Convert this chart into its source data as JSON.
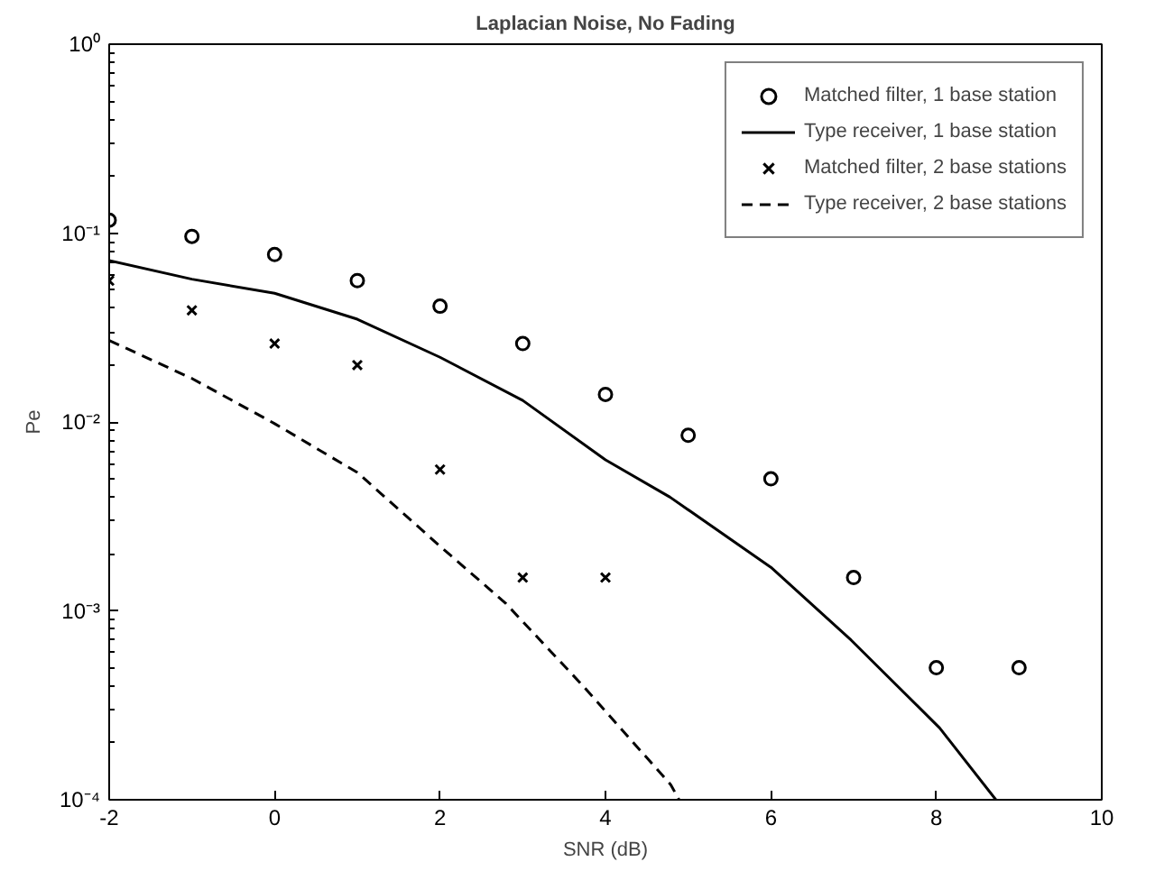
{
  "chart_data": {
    "type": "line",
    "title": "Laplacian Noise, No Fading",
    "xlabel": "SNR (dB)",
    "ylabel": "Pe",
    "log": "y",
    "grid": false,
    "legend": "top right",
    "xlim": [
      -2,
      10
    ],
    "xticks": [
      -2,
      0,
      2,
      4,
      6,
      8,
      10
    ],
    "ylim": [
      0.0001,
      1
    ],
    "yticks": [
      {
        "value": 0.0001,
        "label": "10⁻⁴"
      },
      {
        "value": 0.001,
        "label": "10⁻³"
      },
      {
        "value": 0.01,
        "label": "10⁻²"
      },
      {
        "value": 0.1,
        "label": "10⁻¹"
      },
      {
        "value": 1,
        "label": "10⁰"
      }
    ],
    "series": [
      {
        "name": "Matched filter, 1 base station",
        "type": "scatter",
        "marker": "circle",
        "color": "#000000",
        "x": [
          -2,
          -1,
          0,
          1,
          2,
          3,
          4,
          5,
          6,
          7,
          8,
          9
        ],
        "values": [
          0.117,
          0.096,
          0.077,
          0.056,
          0.041,
          0.026,
          0.014,
          0.0085,
          0.005,
          0.0015,
          0.0005,
          0.0005
        ]
      },
      {
        "name": "Type receiver, 1 base station",
        "line_style": "solid",
        "color": "#000000",
        "x": [
          -2,
          -1,
          0,
          1,
          2,
          3,
          4,
          4.78,
          6,
          6.97,
          8.04,
          8.72
        ],
        "values": [
          0.0715,
          0.057,
          0.048,
          0.035,
          0.022,
          0.013,
          0.0063,
          0.004,
          0.0017,
          0.0007,
          0.00024,
          0.0001
        ]
      },
      {
        "name": "Matched filter, 2 base stations",
        "type": "scatter",
        "marker": "cross",
        "color": "#000000",
        "x": [
          -2,
          -1,
          0,
          1,
          2,
          3,
          4
        ],
        "values": [
          0.056,
          0.039,
          0.026,
          0.02,
          0.0056,
          0.0015,
          0.0015
        ]
      },
      {
        "name": "Type receiver, 2 base stations",
        "line_style": "dashed",
        "color": "#000000",
        "x": [
          -2,
          -1,
          0,
          1,
          2,
          2.79,
          3.73,
          4.79,
          4.89
        ],
        "values": [
          0.027,
          0.017,
          0.0098,
          0.0054,
          0.0022,
          0.0011,
          0.0004,
          0.00012,
          0.0001
        ]
      }
    ]
  }
}
